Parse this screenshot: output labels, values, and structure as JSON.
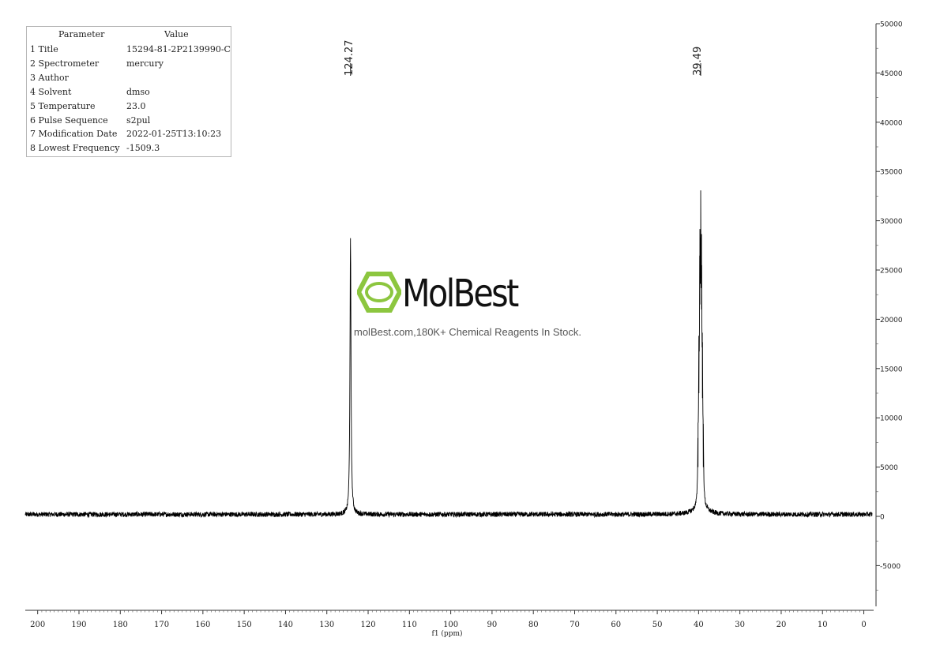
{
  "parameters": {
    "header_param": "Parameter",
    "header_value": "Value",
    "rows": [
      {
        "label": "1 Title",
        "value": "15294-81-2P2139990-C"
      },
      {
        "label": "2 Spectrometer",
        "value": "mercury"
      },
      {
        "label": "3 Author",
        "value": ""
      },
      {
        "label": "4 Solvent",
        "value": "dmso"
      },
      {
        "label": "5 Temperature",
        "value": "23.0"
      },
      {
        "label": "6 Pulse Sequence",
        "value": "s2pul"
      },
      {
        "label": "7 Modification Date",
        "value": "2022-01-25T13:10:23"
      },
      {
        "label": "8 Lowest Frequency",
        "value": "-1509.3"
      }
    ]
  },
  "watermark": {
    "brand": "MolBest",
    "tagline": "molBest.com,180K+ Chemical Reagents In Stock.",
    "brand_color": "#8cc63f"
  },
  "chart_data": {
    "type": "line",
    "xlabel": "f1 (ppm)",
    "ylabel": "",
    "xlim": [
      203,
      -2
    ],
    "ylim": [
      -9000,
      50000
    ],
    "x_reversed": true,
    "x_ticks": [
      200,
      190,
      180,
      170,
      160,
      150,
      140,
      130,
      120,
      110,
      100,
      90,
      80,
      70,
      60,
      50,
      40,
      30,
      20,
      10,
      0
    ],
    "y_ticks": [
      50000,
      45000,
      40000,
      35000,
      30000,
      25000,
      20000,
      15000,
      10000,
      5000,
      0,
      -5000
    ],
    "y_tick_labels": [
      "50000",
      "45000",
      "40000",
      "35000",
      "30000",
      "25000",
      "20000",
      "15000",
      "10000",
      "5000",
      "0",
      "-5000"
    ],
    "peak_labels": [
      "124.27",
      "39.49"
    ],
    "peaks": [
      {
        "ppm": 124.27,
        "height": 27800,
        "width": 0.15
      },
      {
        "ppm": 39.49,
        "height": 24200,
        "width": 0.6,
        "multiplet": [
          {
            "ppm": 40.13,
            "height": 5000
          },
          {
            "ppm": 39.92,
            "height": 12500
          },
          {
            "ppm": 39.7,
            "height": 21500
          },
          {
            "ppm": 39.49,
            "height": 24200
          },
          {
            "ppm": 39.28,
            "height": 21000
          },
          {
            "ppm": 39.07,
            "height": 12000
          },
          {
            "ppm": 38.86,
            "height": 5000
          }
        ]
      }
    ],
    "baseline": 200,
    "noise_amplitude": 250,
    "line_color": "#000000"
  }
}
